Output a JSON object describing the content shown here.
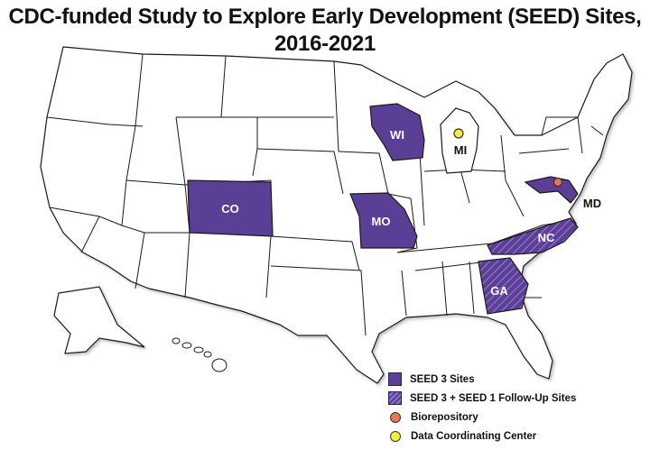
{
  "title": {
    "line1": "CDC-funded Study to Explore Early Development (SEED) Sites,",
    "line2": "2016-2021"
  },
  "colors": {
    "seed3": "#5b3e96",
    "seed3_hatch": "#8d76c4",
    "biorepository": "#e8774f",
    "data_center": "#f5ee3a",
    "state_fill": "#ffffff",
    "state_border": "#1a1a1a"
  },
  "map": {
    "seed3_states": [
      "CO",
      "WI",
      "MO",
      "MD"
    ],
    "seed3_followup_states": [
      "NC",
      "GA"
    ],
    "labels": {
      "CO": "CO",
      "WI": "WI",
      "MO": "MO",
      "NC": "NC",
      "GA": "GA",
      "MD": "MD",
      "MI": "MI"
    }
  },
  "legend": {
    "seed3": "SEED 3 Sites",
    "seed3_followup": "SEED 3 + SEED 1 Follow-Up Sites",
    "biorepository": "Biorepository",
    "data_center": "Data Coordinating Center"
  }
}
